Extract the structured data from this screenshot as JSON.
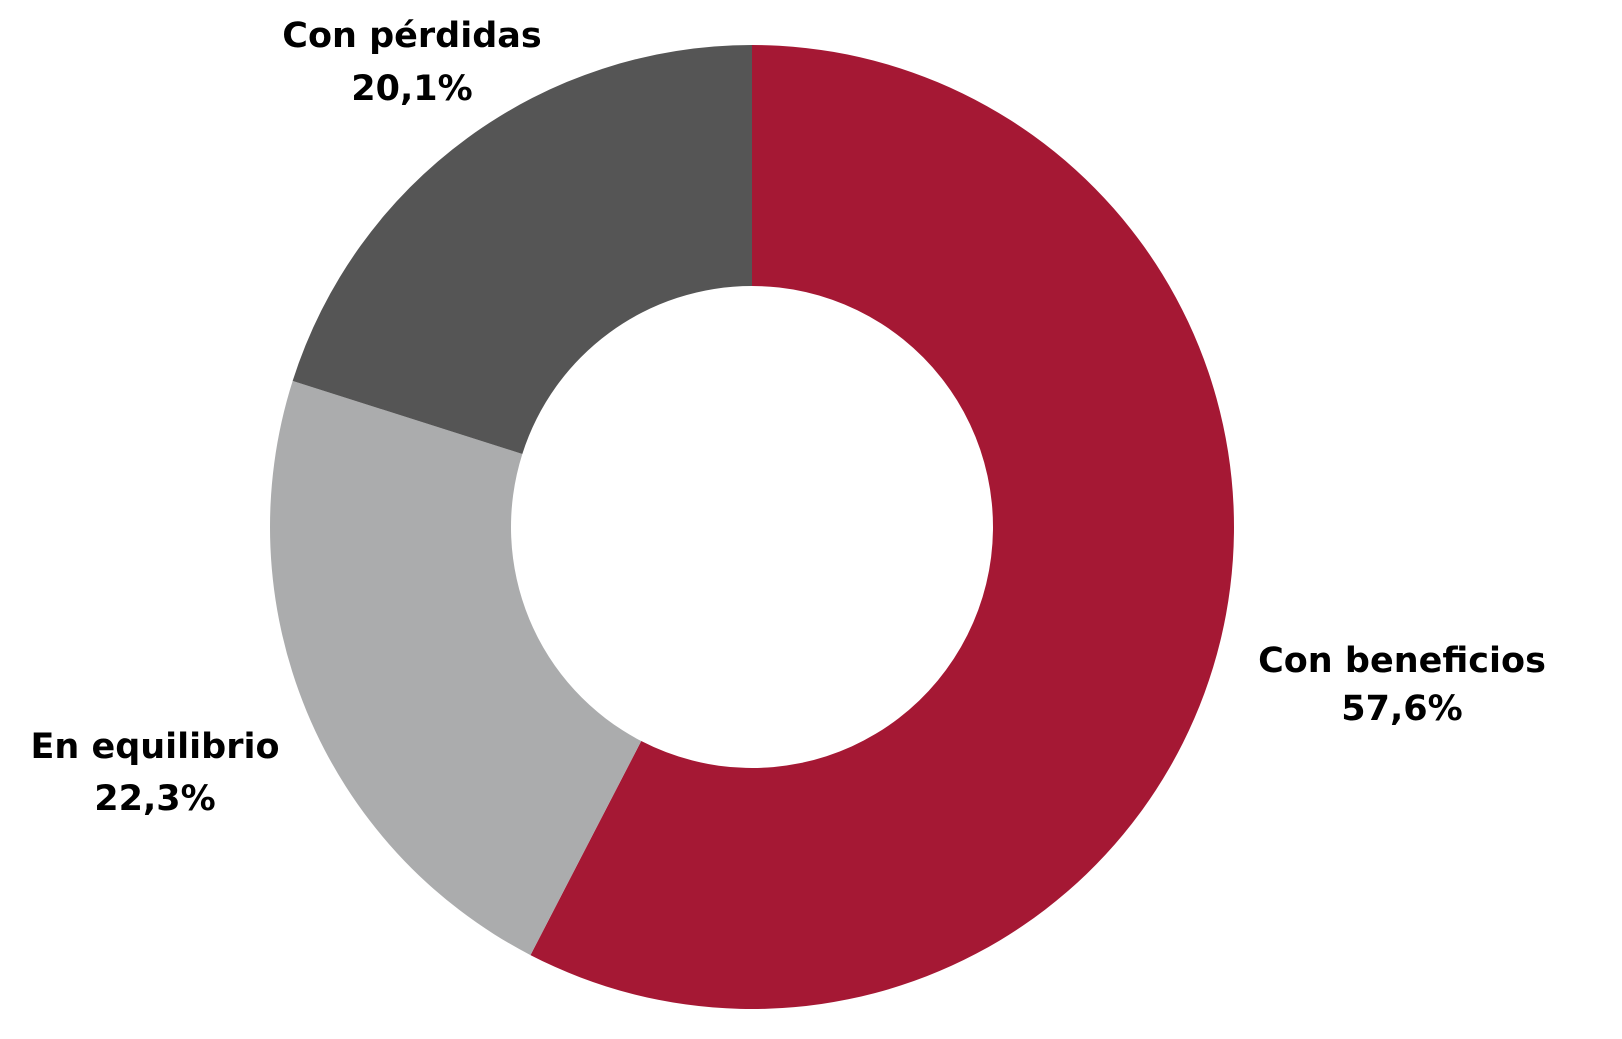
{
  "chart_data": {
    "type": "donut",
    "categories": [
      "Con beneficios",
      "En equilibrio",
      "Con pérdidas"
    ],
    "values": [
      57.6,
      22.3,
      20.1
    ],
    "value_labels": [
      "57,6%",
      "22,3%",
      "20,1%"
    ],
    "colors": [
      "#a51834",
      "#abacad",
      "#555555"
    ]
  }
}
